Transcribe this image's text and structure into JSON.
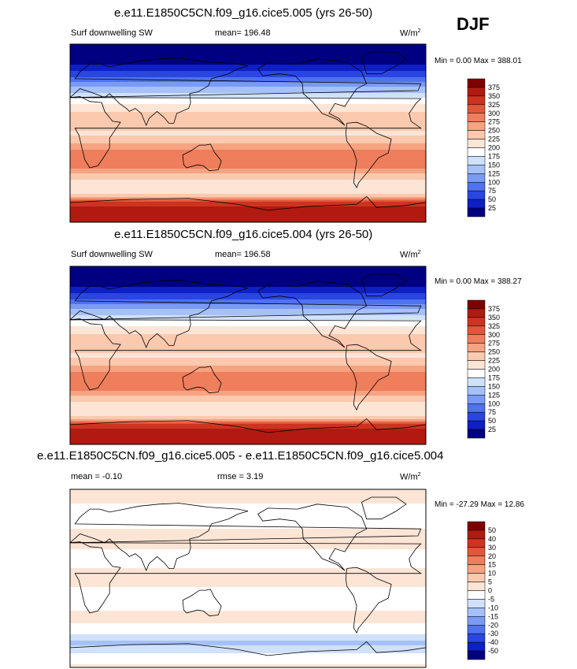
{
  "season": "DJF",
  "colors": {
    "sw_scale": [
      "#000080",
      "#0e1fc3",
      "#2a46e0",
      "#4f72ee",
      "#7a9bf4",
      "#a6c1f8",
      "#d0e1fb",
      "#ffffff",
      "#fde5d6",
      "#fbc9ae",
      "#f6a382",
      "#ee7e5c",
      "#e1573b",
      "#cc3421",
      "#b01a10",
      "#7e0000"
    ],
    "diff_scale": [
      "#000080",
      "#0e1fc3",
      "#2a46e0",
      "#4f72ee",
      "#7a9bf4",
      "#a6c1f8",
      "#d0e1fb",
      "#ffffff",
      "#fde5d6",
      "#fbc9ae",
      "#f6a382",
      "#ee7e5c",
      "#e1573b",
      "#cc3421",
      "#b01a10",
      "#7e0000"
    ]
  },
  "chart_data": [
    {
      "type": "heatmap",
      "title": "e.e11.E1850C5CN.f09_g16.cice5.005 (yrs 26-50)",
      "variable": "Surf downwelling SW",
      "mean_text": "mean= 196.48",
      "units": "W/m",
      "units_sup": "2",
      "minmax_text": "Min =   0.00 Max = 388.01",
      "min": 0.0,
      "max": 388.01,
      "colorbar_levels": [
        "375",
        "350",
        "325",
        "300",
        "275",
        "250",
        "225",
        "200",
        "175",
        "150",
        "125",
        "100",
        "75",
        "50",
        "25"
      ],
      "zonal_profile": [
        {
          "lat": 90,
          "value": 0
        },
        {
          "lat": 70,
          "value": 20
        },
        {
          "lat": 60,
          "value": 60
        },
        {
          "lat": 50,
          "value": 110
        },
        {
          "lat": 40,
          "value": 155
        },
        {
          "lat": 30,
          "value": 200
        },
        {
          "lat": 20,
          "value": 230
        },
        {
          "lat": 10,
          "value": 245
        },
        {
          "lat": 0,
          "value": 220
        },
        {
          "lat": -10,
          "value": 250
        },
        {
          "lat": -20,
          "value": 285
        },
        {
          "lat": -30,
          "value": 300
        },
        {
          "lat": -40,
          "value": 255
        },
        {
          "lat": -50,
          "value": 215
        },
        {
          "lat": -60,
          "value": 200
        },
        {
          "lat": -70,
          "value": 330
        },
        {
          "lat": -80,
          "value": 375
        },
        {
          "lat": -90,
          "value": 360
        }
      ]
    },
    {
      "type": "heatmap",
      "title": "e.e11.E1850C5CN.f09_g16.cice5.004 (yrs 26-50)",
      "variable": "Surf downwelling SW",
      "mean_text": "mean= 196.58",
      "units": "W/m",
      "units_sup": "2",
      "minmax_text": "Min =   0.00 Max = 388.27",
      "min": 0.0,
      "max": 388.27,
      "colorbar_levels": [
        "375",
        "350",
        "325",
        "300",
        "275",
        "250",
        "225",
        "200",
        "175",
        "150",
        "125",
        "100",
        "75",
        "50",
        "25"
      ],
      "zonal_profile": [
        {
          "lat": 90,
          "value": 0
        },
        {
          "lat": 70,
          "value": 20
        },
        {
          "lat": 60,
          "value": 60
        },
        {
          "lat": 50,
          "value": 110
        },
        {
          "lat": 40,
          "value": 155
        },
        {
          "lat": 30,
          "value": 200
        },
        {
          "lat": 20,
          "value": 230
        },
        {
          "lat": 10,
          "value": 245
        },
        {
          "lat": 0,
          "value": 220
        },
        {
          "lat": -10,
          "value": 250
        },
        {
          "lat": -20,
          "value": 285
        },
        {
          "lat": -30,
          "value": 300
        },
        {
          "lat": -40,
          "value": 255
        },
        {
          "lat": -50,
          "value": 215
        },
        {
          "lat": -60,
          "value": 200
        },
        {
          "lat": -70,
          "value": 330
        },
        {
          "lat": -80,
          "value": 375
        },
        {
          "lat": -90,
          "value": 360
        }
      ]
    },
    {
      "type": "heatmap",
      "title": "e.e11.E1850C5CN.f09_g16.cice5.005 - e.e11.E1850C5CN.f09_g16.cice5.004",
      "mean_text": "mean =  -0.10",
      "rmse_text": "rmse =   3.19",
      "units": "W/m",
      "units_sup": "2",
      "minmax_text": "Min = -27.29 Max =  12.86",
      "min": -27.29,
      "max": 12.86,
      "colorbar_levels": [
        "50",
        "40",
        "30",
        "20",
        "15",
        "10",
        "5",
        "0",
        "-5",
        "-10",
        "-15",
        "-20",
        "-30",
        "-40",
        "-50"
      ],
      "zonal_profile": [
        {
          "lat": 90,
          "value": 2
        },
        {
          "lat": 60,
          "value": -2
        },
        {
          "lat": 40,
          "value": 2
        },
        {
          "lat": 20,
          "value": -2
        },
        {
          "lat": 0,
          "value": 2
        },
        {
          "lat": -20,
          "value": -3
        },
        {
          "lat": -40,
          "value": 2
        },
        {
          "lat": -55,
          "value": -4
        },
        {
          "lat": -65,
          "value": -12
        },
        {
          "lat": -80,
          "value": -2
        },
        {
          "lat": -90,
          "value": 1
        }
      ]
    }
  ]
}
